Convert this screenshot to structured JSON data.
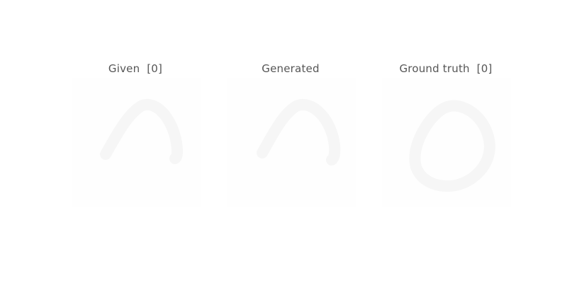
{
  "panels": {
    "given": {
      "title": "Given  [0]"
    },
    "generated": {
      "title": "Generated"
    },
    "ground_truth": {
      "title": "Ground truth  [0]"
    }
  },
  "colors": {
    "background": "#ffffff",
    "title_text": "#555555",
    "stroke": "#f6f6f6"
  }
}
